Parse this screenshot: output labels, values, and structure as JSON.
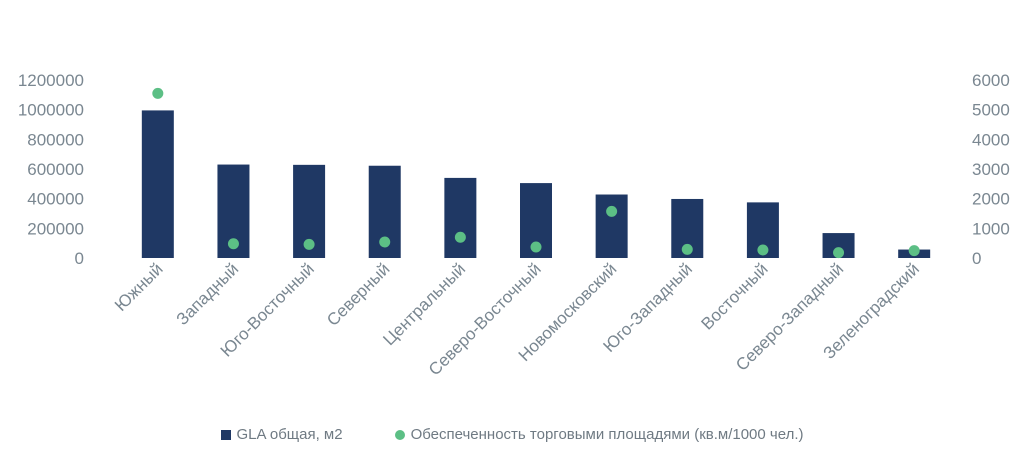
{
  "chart_data": {
    "type": "bar",
    "categories": [
      "Южный",
      "Западный",
      "Юго-Восточный",
      "Северный",
      "Центральный",
      "Северо-Восточный",
      "Новомосковский",
      "Юго-Западный",
      "Восточный",
      "Северо-Западный",
      "Зеленоградский"
    ],
    "series": [
      {
        "name": "GLA общая, м2",
        "type": "bar",
        "axis": "left",
        "color": "#1f3864",
        "values": [
          995000,
          630000,
          628000,
          622000,
          540000,
          505000,
          428000,
          398000,
          375000,
          168000,
          57000
        ]
      },
      {
        "name": "Обеспеченность торговыми площадями (кв.м/1000 чел.)",
        "type": "scatter",
        "axis": "right",
        "color": "#5cbf85",
        "values": [
          5550,
          480,
          460,
          540,
          700,
          370,
          1570,
          290,
          270,
          180,
          250
        ]
      }
    ],
    "y_left": {
      "ylim": [
        0,
        1200000
      ],
      "ticks": [
        "0",
        "200000",
        "400000",
        "600000",
        "800000",
        "1000000",
        "1200000"
      ]
    },
    "y_right": {
      "ylim": [
        0,
        6000
      ],
      "ticks": [
        "0",
        "1000",
        "2000",
        "3000",
        "4000",
        "5000",
        "6000"
      ]
    },
    "grid": false,
    "legend_position": "bottom"
  }
}
